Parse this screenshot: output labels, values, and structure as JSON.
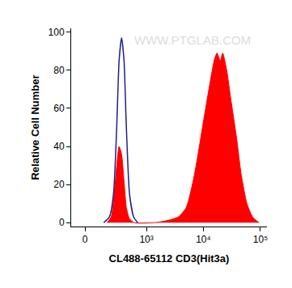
{
  "chart_data": {
    "type": "histogram",
    "x_label": "CL488-65112 CD3(Hit3a)",
    "y_label": "Relative Cell Number",
    "annotations": [
      {
        "text": "WWW.PTGLAB.COM"
      }
    ],
    "log": "x",
    "xlim": [
      -100,
      130000
    ],
    "xticks": [
      0,
      {
        "value": 1000,
        "label": "10³"
      },
      {
        "value": 10000,
        "label": "10⁴"
      },
      {
        "value": 100000,
        "label": "10⁵"
      }
    ],
    "ylim": [
      -2,
      102
    ],
    "yticks": [
      0,
      20,
      40,
      60,
      80,
      100
    ],
    "grid": false,
    "series": [
      {
        "type": "area",
        "color": "#ff0000",
        "x": [
          170,
          212,
          248,
          279,
          312,
          349,
          389,
          431,
          494,
          608,
          1350,
          2210,
          3610,
          5010,
          6950,
          9630,
          12490,
          15720,
          17340,
          19760,
          21780,
          25640,
          30230,
          37990,
          46220,
          58050,
          72970,
          94740
        ],
        "values": [
          0,
          3,
          15,
          30,
          40,
          36,
          22,
          8,
          2,
          0,
          0,
          1,
          3,
          8,
          25,
          50,
          70,
          86,
          89,
          85,
          89,
          80,
          65,
          45,
          25,
          10,
          3,
          0
        ]
      },
      {
        "type": "line",
        "color": "#1f1f8f",
        "x": [
          139,
          194,
          239,
          279,
          312,
          349,
          389,
          431,
          494,
          588,
          697
        ],
        "values": [
          0,
          3,
          15,
          50,
          85,
          97,
          85,
          50,
          15,
          3,
          0
        ]
      }
    ]
  }
}
